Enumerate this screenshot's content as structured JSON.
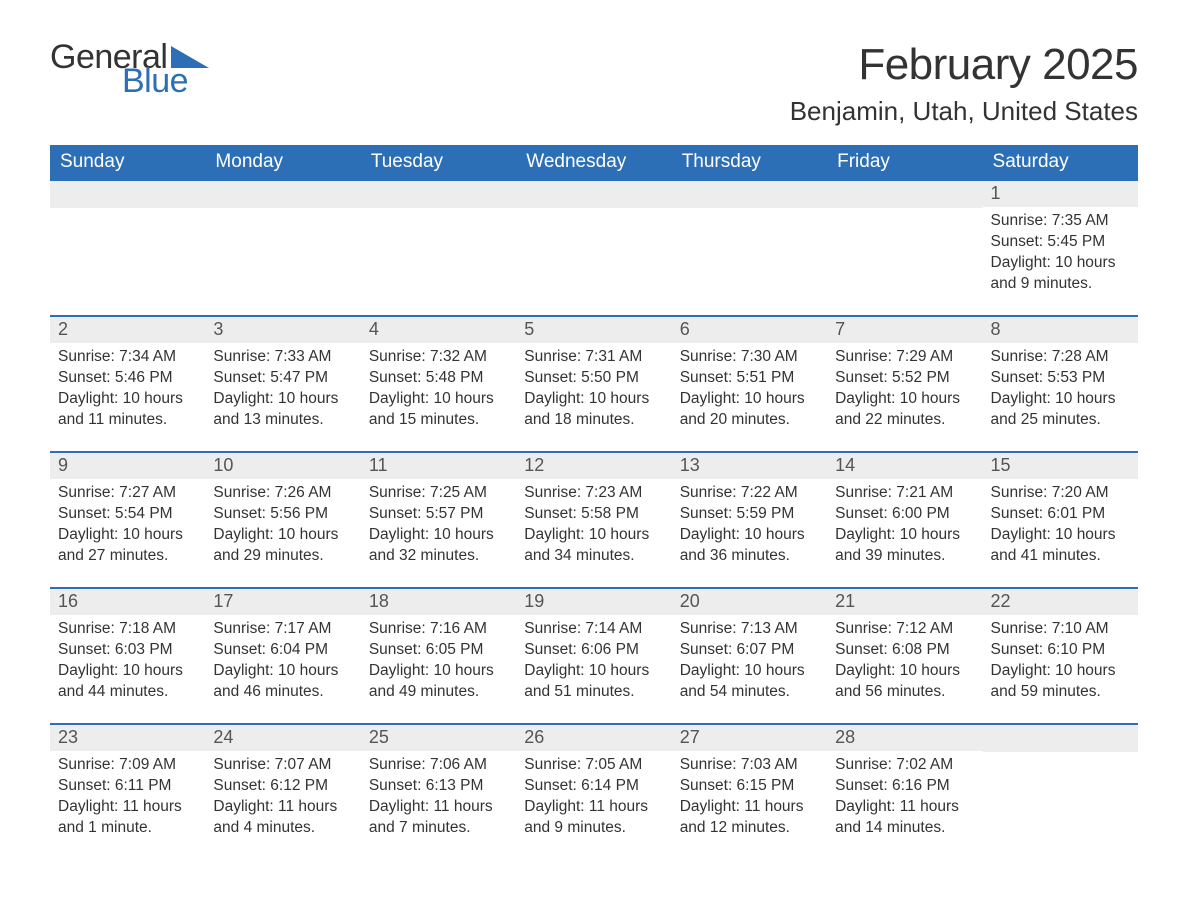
{
  "logo": {
    "text1": "General",
    "text2": "Blue",
    "triangle_color": "#2d6fb6"
  },
  "title": "February 2025",
  "location": "Benjamin, Utah, United States",
  "colors": {
    "header_bg": "#2d6fb6",
    "header_fg": "#ffffff",
    "daynum_bg": "#ededed",
    "border": "#2d6fb6",
    "text": "#333333"
  },
  "day_headers": [
    "Sunday",
    "Monday",
    "Tuesday",
    "Wednesday",
    "Thursday",
    "Friday",
    "Saturday"
  ],
  "weeks": [
    [
      null,
      null,
      null,
      null,
      null,
      null,
      {
        "n": "1",
        "sunrise": "7:35 AM",
        "sunset": "5:45 PM",
        "daylight": "10 hours and 9 minutes."
      }
    ],
    [
      {
        "n": "2",
        "sunrise": "7:34 AM",
        "sunset": "5:46 PM",
        "daylight": "10 hours and 11 minutes."
      },
      {
        "n": "3",
        "sunrise": "7:33 AM",
        "sunset": "5:47 PM",
        "daylight": "10 hours and 13 minutes."
      },
      {
        "n": "4",
        "sunrise": "7:32 AM",
        "sunset": "5:48 PM",
        "daylight": "10 hours and 15 minutes."
      },
      {
        "n": "5",
        "sunrise": "7:31 AM",
        "sunset": "5:50 PM",
        "daylight": "10 hours and 18 minutes."
      },
      {
        "n": "6",
        "sunrise": "7:30 AM",
        "sunset": "5:51 PM",
        "daylight": "10 hours and 20 minutes."
      },
      {
        "n": "7",
        "sunrise": "7:29 AM",
        "sunset": "5:52 PM",
        "daylight": "10 hours and 22 minutes."
      },
      {
        "n": "8",
        "sunrise": "7:28 AM",
        "sunset": "5:53 PM",
        "daylight": "10 hours and 25 minutes."
      }
    ],
    [
      {
        "n": "9",
        "sunrise": "7:27 AM",
        "sunset": "5:54 PM",
        "daylight": "10 hours and 27 minutes."
      },
      {
        "n": "10",
        "sunrise": "7:26 AM",
        "sunset": "5:56 PM",
        "daylight": "10 hours and 29 minutes."
      },
      {
        "n": "11",
        "sunrise": "7:25 AM",
        "sunset": "5:57 PM",
        "daylight": "10 hours and 32 minutes."
      },
      {
        "n": "12",
        "sunrise": "7:23 AM",
        "sunset": "5:58 PM",
        "daylight": "10 hours and 34 minutes."
      },
      {
        "n": "13",
        "sunrise": "7:22 AM",
        "sunset": "5:59 PM",
        "daylight": "10 hours and 36 minutes."
      },
      {
        "n": "14",
        "sunrise": "7:21 AM",
        "sunset": "6:00 PM",
        "daylight": "10 hours and 39 minutes."
      },
      {
        "n": "15",
        "sunrise": "7:20 AM",
        "sunset": "6:01 PM",
        "daylight": "10 hours and 41 minutes."
      }
    ],
    [
      {
        "n": "16",
        "sunrise": "7:18 AM",
        "sunset": "6:03 PM",
        "daylight": "10 hours and 44 minutes."
      },
      {
        "n": "17",
        "sunrise": "7:17 AM",
        "sunset": "6:04 PM",
        "daylight": "10 hours and 46 minutes."
      },
      {
        "n": "18",
        "sunrise": "7:16 AM",
        "sunset": "6:05 PM",
        "daylight": "10 hours and 49 minutes."
      },
      {
        "n": "19",
        "sunrise": "7:14 AM",
        "sunset": "6:06 PM",
        "daylight": "10 hours and 51 minutes."
      },
      {
        "n": "20",
        "sunrise": "7:13 AM",
        "sunset": "6:07 PM",
        "daylight": "10 hours and 54 minutes."
      },
      {
        "n": "21",
        "sunrise": "7:12 AM",
        "sunset": "6:08 PM",
        "daylight": "10 hours and 56 minutes."
      },
      {
        "n": "22",
        "sunrise": "7:10 AM",
        "sunset": "6:10 PM",
        "daylight": "10 hours and 59 minutes."
      }
    ],
    [
      {
        "n": "23",
        "sunrise": "7:09 AM",
        "sunset": "6:11 PM",
        "daylight": "11 hours and 1 minute."
      },
      {
        "n": "24",
        "sunrise": "7:07 AM",
        "sunset": "6:12 PM",
        "daylight": "11 hours and 4 minutes."
      },
      {
        "n": "25",
        "sunrise": "7:06 AM",
        "sunset": "6:13 PM",
        "daylight": "11 hours and 7 minutes."
      },
      {
        "n": "26",
        "sunrise": "7:05 AM",
        "sunset": "6:14 PM",
        "daylight": "11 hours and 9 minutes."
      },
      {
        "n": "27",
        "sunrise": "7:03 AM",
        "sunset": "6:15 PM",
        "daylight": "11 hours and 12 minutes."
      },
      {
        "n": "28",
        "sunrise": "7:02 AM",
        "sunset": "6:16 PM",
        "daylight": "11 hours and 14 minutes."
      },
      null
    ]
  ],
  "labels": {
    "sunrise": "Sunrise:",
    "sunset": "Sunset:",
    "daylight": "Daylight:"
  }
}
